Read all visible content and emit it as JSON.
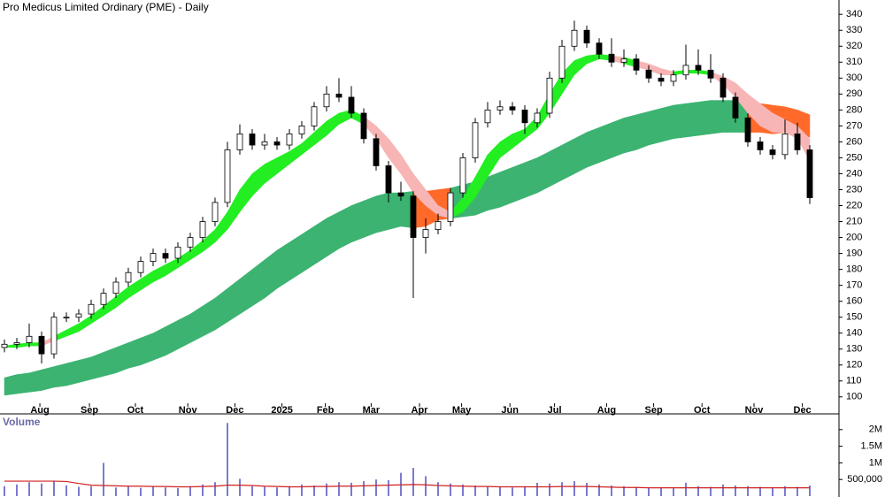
{
  "chart_data": [
    {
      "type": "candlestick",
      "title": "Pro Medicus Limited Ordinary (PME) - Daily",
      "xticks": [
        {
          "value": 2.86,
          "label": "Aug"
        },
        {
          "value": 6.86,
          "label": "Sep"
        },
        {
          "value": 10.57,
          "label": "Oct"
        },
        {
          "value": 14.8,
          "label": "Nov"
        },
        {
          "value": 18.6,
          "label": "Dec"
        },
        {
          "value": 22.4,
          "label": "2025"
        },
        {
          "value": 25.9,
          "label": "Feb"
        },
        {
          "value": 29.6,
          "label": "Mar"
        },
        {
          "value": 33.5,
          "label": "Apr"
        },
        {
          "value": 36.9,
          "label": "May"
        },
        {
          "value": 40.8,
          "label": "Jun"
        },
        {
          "value": 44.4,
          "label": "Jul"
        },
        {
          "value": 48.6,
          "label": "Aug"
        },
        {
          "value": 52.4,
          "label": "Sep"
        },
        {
          "value": 56.3,
          "label": "Oct"
        },
        {
          "value": 60.5,
          "label": "Nov"
        },
        {
          "value": 64.4,
          "label": "Dec"
        }
      ],
      "ylim": [
        96,
        349
      ],
      "yticks": [
        100,
        110,
        120,
        130,
        140,
        150,
        160,
        170,
        180,
        190,
        200,
        210,
        220,
        230,
        240,
        250,
        260,
        270,
        280,
        290,
        300,
        310,
        320,
        330,
        340
      ],
      "open": [
        131,
        133,
        134,
        138,
        127,
        150,
        150,
        152,
        158,
        165,
        172,
        178,
        185,
        190,
        187,
        194,
        200,
        210,
        222,
        255,
        265,
        258,
        260,
        258,
        265,
        270,
        282,
        290,
        288,
        278,
        262,
        245,
        228,
        226,
        200,
        205,
        210,
        228,
        250,
        272,
        280,
        282,
        280,
        272,
        278,
        300,
        320,
        330,
        322,
        315,
        310,
        312,
        305,
        300,
        298,
        302,
        308,
        305,
        300,
        288,
        275,
        260,
        255,
        252,
        265,
        255
      ],
      "high": [
        136,
        137,
        146,
        141,
        153,
        153,
        155,
        161,
        168,
        175,
        181,
        188,
        193,
        193,
        197,
        203,
        213,
        225,
        260,
        271,
        268,
        265,
        263,
        268,
        273,
        285,
        295,
        300,
        295,
        281,
        265,
        248,
        235,
        229,
        212,
        215,
        231,
        253,
        275,
        285,
        286,
        285,
        283,
        281,
        304,
        324,
        336,
        333,
        325,
        325,
        318,
        315,
        308,
        303,
        305,
        321,
        318,
        315,
        303,
        291,
        278,
        263,
        258,
        274,
        272,
        258
      ],
      "low": [
        128,
        130,
        131,
        121,
        124,
        147,
        147,
        149,
        155,
        162,
        169,
        175,
        182,
        184,
        184,
        191,
        197,
        207,
        219,
        252,
        255,
        255,
        255,
        255,
        262,
        267,
        279,
        285,
        275,
        259,
        242,
        222,
        223,
        162,
        190,
        202,
        207,
        225,
        247,
        269,
        277,
        277,
        265,
        269,
        275,
        297,
        317,
        319,
        312,
        307,
        307,
        302,
        297,
        295,
        295,
        299,
        302,
        297,
        285,
        272,
        257,
        252,
        249,
        249,
        252,
        221
      ],
      "close": [
        133,
        134,
        138,
        127,
        150,
        150,
        152,
        158,
        165,
        172,
        178,
        185,
        190,
        187,
        194,
        200,
        210,
        222,
        255,
        265,
        258,
        260,
        258,
        265,
        270,
        282,
        290,
        288,
        278,
        262,
        245,
        228,
        226,
        200,
        205,
        210,
        228,
        250,
        272,
        280,
        282,
        280,
        272,
        278,
        300,
        320,
        330,
        322,
        315,
        310,
        312,
        305,
        300,
        298,
        302,
        308,
        305,
        300,
        288,
        275,
        260,
        255,
        252,
        265,
        255,
        225
      ],
      "up_color": "#ffffff",
      "down_color": "#000000",
      "bands": [
        {
          "upper": [
            112,
            114,
            115,
            117,
            119,
            121,
            123,
            125,
            128,
            131,
            134,
            137,
            140,
            144,
            148,
            152,
            157,
            162,
            168,
            174,
            180,
            186,
            192,
            197,
            202,
            207,
            212,
            216,
            220,
            223,
            226,
            228,
            228,
            229,
            229,
            230,
            231,
            233,
            235,
            238,
            241,
            244,
            247,
            250,
            254,
            258,
            262,
            266,
            269,
            272,
            275,
            277,
            279,
            281,
            283,
            284,
            285,
            286,
            286,
            286,
            285,
            284,
            283,
            282,
            280,
            277
          ],
          "lower": [
            101,
            102,
            103,
            104,
            106,
            107,
            109,
            111,
            113,
            115,
            118,
            120,
            123,
            126,
            130,
            134,
            138,
            142,
            147,
            152,
            157,
            162,
            168,
            173,
            178,
            183,
            188,
            193,
            197,
            200,
            203,
            205,
            207,
            206,
            207,
            211,
            212,
            213,
            214,
            217,
            219,
            222,
            225,
            228,
            232,
            236,
            240,
            244,
            247,
            250,
            253,
            255,
            258,
            260,
            262,
            263,
            264,
            265,
            266,
            266,
            266,
            266,
            265,
            266,
            264,
            263
          ],
          "up_color": "#3cb371",
          "down_color": "#ff6a2a"
        },
        {
          "upper": [
            132,
            133,
            134,
            134,
            138,
            142,
            146,
            151,
            157,
            163,
            169,
            174,
            179,
            183,
            187,
            192,
            198,
            205,
            216,
            230,
            240,
            246,
            250,
            254,
            259,
            266,
            273,
            278,
            280,
            276,
            270,
            262,
            252,
            240,
            230,
            220,
            216,
            225,
            238,
            252,
            260,
            265,
            268,
            276,
            290,
            303,
            311,
            314,
            315,
            314,
            313,
            311,
            309,
            306,
            304,
            305,
            305,
            304,
            301,
            297,
            290,
            284,
            278,
            274,
            270,
            262
          ],
          "lower": [
            131,
            131,
            132,
            132,
            135,
            138,
            141,
            146,
            151,
            156,
            162,
            167,
            172,
            176,
            181,
            186,
            191,
            197,
            205,
            216,
            226,
            234,
            240,
            246,
            252,
            258,
            264,
            271,
            275,
            271,
            262,
            250,
            240,
            228,
            220,
            214,
            212,
            216,
            225,
            238,
            250,
            256,
            262,
            268,
            278,
            290,
            302,
            309,
            312,
            311,
            309,
            307,
            305,
            302,
            302,
            303,
            303,
            302,
            296,
            288,
            278,
            270,
            266,
            266,
            262,
            248
          ],
          "up_color": "#22ee22",
          "down_color": "#f7b5b5"
        }
      ]
    },
    {
      "type": "bar",
      "title": "Volume",
      "values": [
        300000,
        350000,
        420000,
        380000,
        450000,
        320000,
        280000,
        300000,
        1000000,
        260000,
        300000,
        250000,
        280000,
        260000,
        240000,
        300000,
        350000,
        420000,
        2200000,
        520000,
        300000,
        280000,
        260000,
        300000,
        350000,
        320000,
        380000,
        420000,
        400000,
        450000,
        500000,
        480000,
        700000,
        850000,
        600000,
        420000,
        380000,
        350000,
        320000,
        300000,
        280000,
        260000,
        300000,
        400000,
        380000,
        420000,
        450000,
        400000,
        350000,
        320000,
        300000,
        280000,
        260000,
        240000,
        250000,
        400000,
        300000,
        280000,
        350000,
        320000,
        300000,
        280000,
        260000,
        300000,
        280000,
        320000
      ],
      "color": "#7b7bd0",
      "line": {
        "values": [
          450000,
          450000,
          450000,
          450000,
          450000,
          440000,
          380000,
          330000,
          320000,
          310000,
          300000,
          300000,
          290000,
          290000,
          280000,
          280000,
          290000,
          300000,
          330000,
          330000,
          320000,
          300000,
          290000,
          280000,
          280000,
          290000,
          290000,
          300000,
          300000,
          310000,
          320000,
          330000,
          340000,
          350000,
          340000,
          320000,
          310000,
          300000,
          290000,
          290000,
          280000,
          280000,
          280000,
          280000,
          280000,
          290000,
          290000,
          290000,
          280000,
          270000,
          260000,
          260000,
          250000,
          250000,
          250000,
          250000,
          250000,
          250000,
          250000,
          250000,
          250000,
          250000,
          250000,
          250000,
          250000,
          250000
        ],
        "color": "#d02020"
      },
      "ylim": [
        0,
        2420000
      ],
      "yticks": [
        {
          "value": 500000,
          "label": "500,000"
        },
        {
          "value": 1000000,
          "label": "1M"
        },
        {
          "value": 1500000,
          "label": "1.5M"
        },
        {
          "value": 2000000,
          "label": "2M"
        }
      ]
    }
  ]
}
